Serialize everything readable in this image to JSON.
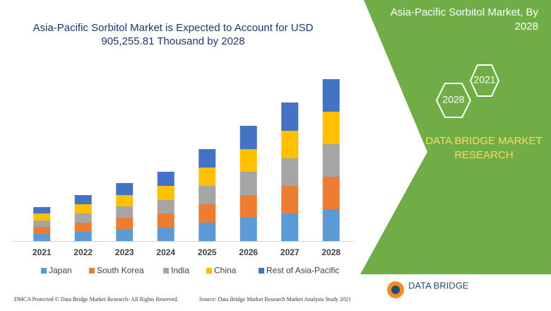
{
  "chart_data": {
    "type": "stacked_bar",
    "title": "Asia-Pacific Sorbitol Market is Expected to Account for USD 905,255.81 Thousand by 2028",
    "categories": [
      "2021",
      "2022",
      "2023",
      "2024",
      "2025",
      "2026",
      "2027",
      "2028"
    ],
    "series": [
      {
        "name": "Japan",
        "color": "#5b9bd5",
        "values": [
          10,
          13,
          16,
          19,
          26,
          33,
          39,
          45
        ]
      },
      {
        "name": "South Korea",
        "color": "#ed7d31",
        "values": [
          10,
          13,
          17,
          20,
          26,
          32,
          39,
          46
        ]
      },
      {
        "name": "India",
        "color": "#a5a5a5",
        "values": [
          9,
          13,
          16,
          19,
          26,
          33,
          39,
          46
        ]
      },
      {
        "name": "China",
        "color": "#ffc000",
        "values": [
          10,
          13,
          16,
          20,
          26,
          32,
          39,
          46
        ]
      },
      {
        "name": "Rest of Asia-Pacific",
        "color": "#4472c4",
        "values": [
          9,
          13,
          17,
          20,
          26,
          33,
          40,
          46
        ]
      }
    ],
    "ylim": [
      0,
      230
    ]
  },
  "panel": {
    "title": "Asia-Pacific Sorbitol Market, By 2028",
    "hex_start": "2021",
    "hex_end": "2028",
    "company": "DATA BRIDGE MARKET RESEARCH"
  },
  "footer": {
    "copyright": "DMCA Protected © Data Bridge Market Research- All Rights Reserved.",
    "source": "Source: Data Bridge Market Research Market Analysis Study 2021",
    "logo": "DATA BRIDGE"
  }
}
